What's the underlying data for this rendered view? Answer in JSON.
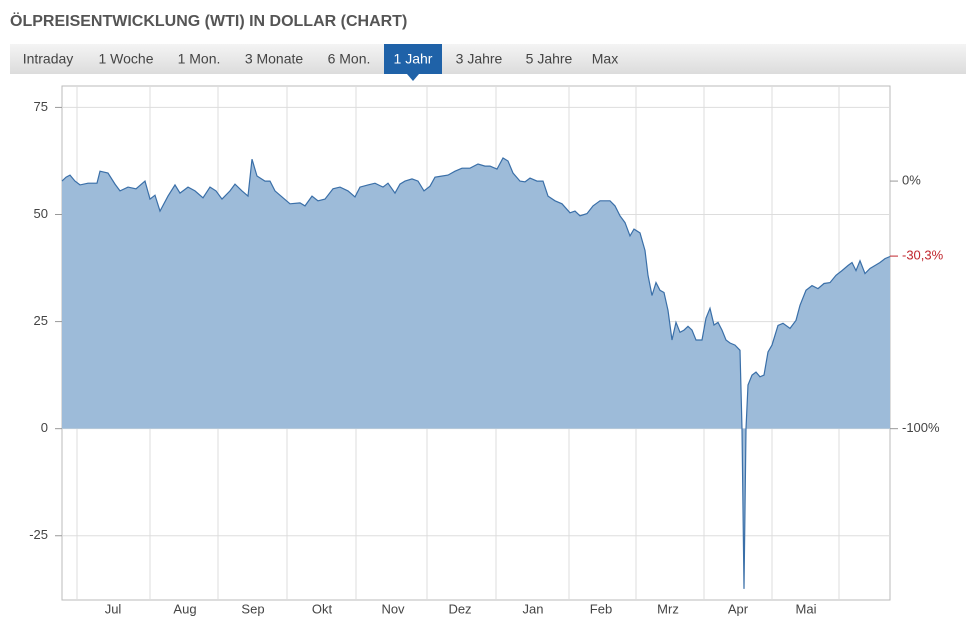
{
  "tabs": [
    "Intraday",
    "1 Woche",
    "1 Mon.",
    "3 Monate",
    "6 Mon.",
    "1 Jahr",
    "3 Jahre",
    "5 Jahre",
    "Max"
  ],
  "active_tab": 5,
  "chart_data": {
    "type": "area",
    "title": "ÖLPREISENTWICKLUNG (WTI) IN DOLLAR (CHART)",
    "series": [
      {
        "color": "#3a6fa8",
        "fill": "#9dbbd9",
        "x": [
          0,
          4,
          8,
          13,
          18,
          26,
          35,
          38,
          46,
          53,
          58,
          66,
          74,
          83,
          88,
          93,
          98,
          106,
          113,
          118,
          126,
          133,
          141,
          148,
          154,
          160,
          168,
          173,
          180,
          186,
          190,
          195,
          203,
          208,
          213,
          220,
          228,
          238,
          243,
          250,
          256,
          263,
          271,
          278,
          286,
          293,
          298,
          306,
          313,
          321,
          326,
          333,
          338,
          343,
          350,
          356,
          362,
          368,
          373,
          378,
          386,
          393,
          400,
          408,
          416,
          423,
          428,
          435,
          441,
          446,
          451,
          458,
          463,
          468,
          475,
          481,
          486,
          493,
          500,
          508,
          513,
          518,
          525,
          531,
          538,
          548,
          553,
          558,
          563,
          568,
          572,
          578,
          583,
          586,
          590,
          594,
          598,
          602,
          606,
          610,
          614,
          618,
          622,
          626,
          630,
          634,
          640,
          644,
          648,
          652,
          656,
          660,
          664,
          668,
          673,
          678,
          680,
          682,
          684,
          686,
          690,
          694,
          698,
          702,
          706,
          710,
          716,
          721,
          728,
          734,
          738,
          744,
          750,
          756,
          762,
          768,
          774,
          780,
          786,
          790,
          794,
          798,
          803,
          808,
          813,
          818,
          823,
          828
        ],
        "values": [
          57.8,
          58.7,
          59.2,
          57.8,
          56.9,
          57.3,
          57.3,
          60.1,
          59.7,
          57.1,
          55.5,
          56.4,
          56.0,
          57.8,
          53.6,
          54.5,
          50.8,
          54.3,
          56.9,
          55.0,
          56.4,
          55.5,
          53.9,
          56.4,
          55.5,
          53.6,
          55.5,
          57.1,
          55.5,
          54.3,
          62.9,
          59.0,
          57.8,
          57.8,
          55.5,
          54.1,
          52.5,
          52.7,
          52.0,
          54.3,
          53.2,
          53.6,
          56.0,
          56.4,
          55.5,
          54.1,
          56.4,
          56.9,
          57.3,
          56.4,
          57.3,
          55.0,
          57.1,
          57.8,
          58.3,
          57.8,
          55.5,
          56.6,
          58.7,
          58.9,
          59.2,
          60.1,
          60.8,
          60.8,
          61.8,
          61.3,
          61.3,
          60.6,
          63.2,
          62.5,
          59.7,
          57.8,
          57.6,
          58.5,
          57.8,
          57.8,
          54.3,
          53.2,
          52.5,
          50.4,
          50.8,
          49.7,
          50.2,
          52.0,
          53.2,
          53.2,
          52.0,
          49.7,
          48.1,
          45.0,
          46.6,
          45.7,
          41.6,
          35.8,
          31.1,
          34.1,
          32.3,
          31.8,
          27.6,
          20.7,
          24.8,
          22.5,
          23.0,
          23.9,
          23.0,
          20.7,
          20.7,
          25.8,
          28.1,
          24.2,
          24.8,
          23.0,
          20.7,
          20.0,
          19.5,
          18.3,
          0,
          -37.4,
          0,
          10.2,
          12.5,
          13.2,
          12.1,
          12.5,
          17.9,
          19.5,
          24.1,
          24.6,
          23.4,
          25.3,
          28.8,
          32.3,
          33.4,
          32.7,
          33.9,
          34.1,
          35.8,
          36.9,
          38.1,
          38.8,
          36.9,
          39.2,
          36.2,
          37.4,
          38.1,
          38.8,
          39.7,
          40.2
        ]
      }
    ],
    "xlim": [
      0,
      828
    ],
    "xticks": [
      {
        "value": 51,
        "label": "Jul"
      },
      {
        "value": 123,
        "label": "Aug"
      },
      {
        "value": 191,
        "label": "Sep"
      },
      {
        "value": 260,
        "label": "Okt"
      },
      {
        "value": 331,
        "label": "Nov"
      },
      {
        "value": 398,
        "label": "Dez"
      },
      {
        "value": 471,
        "label": "Jan"
      },
      {
        "value": 539,
        "label": "Feb"
      },
      {
        "value": 606,
        "label": "Mrz"
      },
      {
        "value": 676,
        "label": "Apr"
      },
      {
        "value": 744,
        "label": "Mai"
      }
    ],
    "xgrid": [
      15,
      88,
      156,
      225,
      294,
      365,
      434,
      507,
      574,
      642,
      710,
      777
    ],
    "ylim": [
      -40,
      80
    ],
    "yticks": [
      -25,
      0,
      25,
      50,
      75
    ],
    "y2lim": [
      -169.2,
      38.4
    ],
    "y2ticks": [
      {
        "value": 0,
        "label": "0%"
      },
      {
        "value": -100,
        "label": "-100%"
      }
    ],
    "last_value_label": {
      "value": -30.3,
      "label": "-30,3%",
      "color": "#c0262d"
    },
    "grid": true
  }
}
